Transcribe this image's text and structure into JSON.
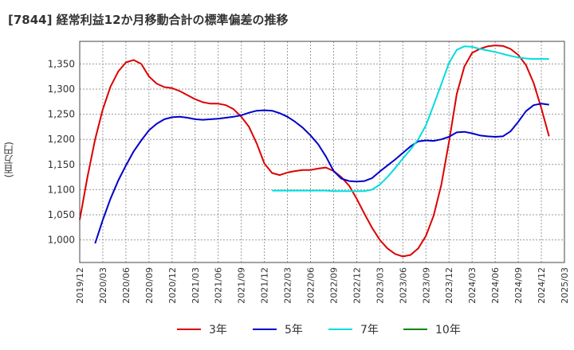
{
  "title": "[7844]  経常利益12か月移動合計の標準偏差の推移",
  "ylabel_text": "(百万円)",
  "chart_data": {
    "type": "line",
    "title": "[7844]  経常利益12か月移動合計の標準偏差の推移",
    "xlabel": "",
    "ylabel": "(百万円)",
    "ylim": [
      955,
      1395
    ],
    "yticks": [
      1000,
      1050,
      1100,
      1150,
      1200,
      1250,
      1300,
      1350
    ],
    "ytick_labels": [
      "1,000",
      "1,050",
      "1,100",
      "1,150",
      "1,200",
      "1,250",
      "1,300",
      "1,350"
    ],
    "xlim": [
      "2019/12",
      "2025/03"
    ],
    "xtick_labels": [
      "2019/12",
      "2020/03",
      "2020/06",
      "2020/09",
      "2020/12",
      "2021/03",
      "2021/06",
      "2021/09",
      "2021/12",
      "2022/03",
      "2022/06",
      "2022/09",
      "2022/12",
      "2023/03",
      "2023/06",
      "2023/09",
      "2023/12",
      "2024/03",
      "2024/06",
      "2024/09",
      "2024/12",
      "2025/03"
    ],
    "grid": true,
    "legend_position": "bottom",
    "series": [
      {
        "name": "3年",
        "color": "#dd0000",
        "x_start": "2019/12",
        "values": [
          1040,
          1125,
          1200,
          1260,
          1305,
          1335,
          1353,
          1358,
          1350,
          1325,
          1311,
          1304,
          1302,
          1296,
          1288,
          1280,
          1274,
          1271,
          1271,
          1268,
          1260,
          1245,
          1225,
          1192,
          1152,
          1133,
          1129,
          1134,
          1137,
          1139,
          1139,
          1142,
          1144,
          1137,
          1125,
          1108,
          1082,
          1052,
          1024,
          1000,
          983,
          972,
          967,
          970,
          983,
          1008,
          1048,
          1110,
          1195,
          1290,
          1345,
          1372,
          1380,
          1385,
          1387,
          1386,
          1380,
          1368,
          1348,
          1312,
          1262,
          1206
        ]
      },
      {
        "name": "5年",
        "color": "#0000cc",
        "x_start": "2019/12",
        "values": [
          null,
          null,
          993,
          1040,
          1082,
          1118,
          1148,
          1176,
          1198,
          1218,
          1231,
          1240,
          1244,
          1245,
          1243,
          1240,
          1239,
          1240,
          1241,
          1243,
          1245,
          1248,
          1253,
          1257,
          1258,
          1257,
          1252,
          1245,
          1235,
          1223,
          1208,
          1190,
          1166,
          1137,
          1122,
          1117,
          1116,
          1117,
          1123,
          1136,
          1148,
          1160,
          1173,
          1186,
          1196,
          1198,
          1197,
          1200,
          1205,
          1214,
          1215,
          1212,
          1208,
          1206,
          1205,
          1206,
          1216,
          1235,
          1256,
          1268,
          1271,
          1269
        ]
      },
      {
        "name": "7年",
        "color": "#00dddd",
        "x_start": "2019/12",
        "values": [
          null,
          null,
          null,
          null,
          null,
          null,
          null,
          null,
          null,
          null,
          null,
          null,
          null,
          null,
          null,
          null,
          null,
          null,
          null,
          null,
          null,
          null,
          null,
          null,
          null,
          1098,
          1098,
          1098,
          1098,
          1098,
          1098,
          1098,
          1098,
          1097,
          1097,
          1097,
          1097,
          1097,
          1100,
          1110,
          1125,
          1143,
          1162,
          1180,
          1200,
          1228,
          1268,
          1310,
          1352,
          1378,
          1385,
          1384,
          1380,
          1377,
          1374,
          1370,
          1366,
          1363,
          1361,
          1360,
          1360,
          1360
        ]
      },
      {
        "name": "10年",
        "color": "#008800",
        "x_start": "2019/12",
        "values": []
      }
    ]
  }
}
